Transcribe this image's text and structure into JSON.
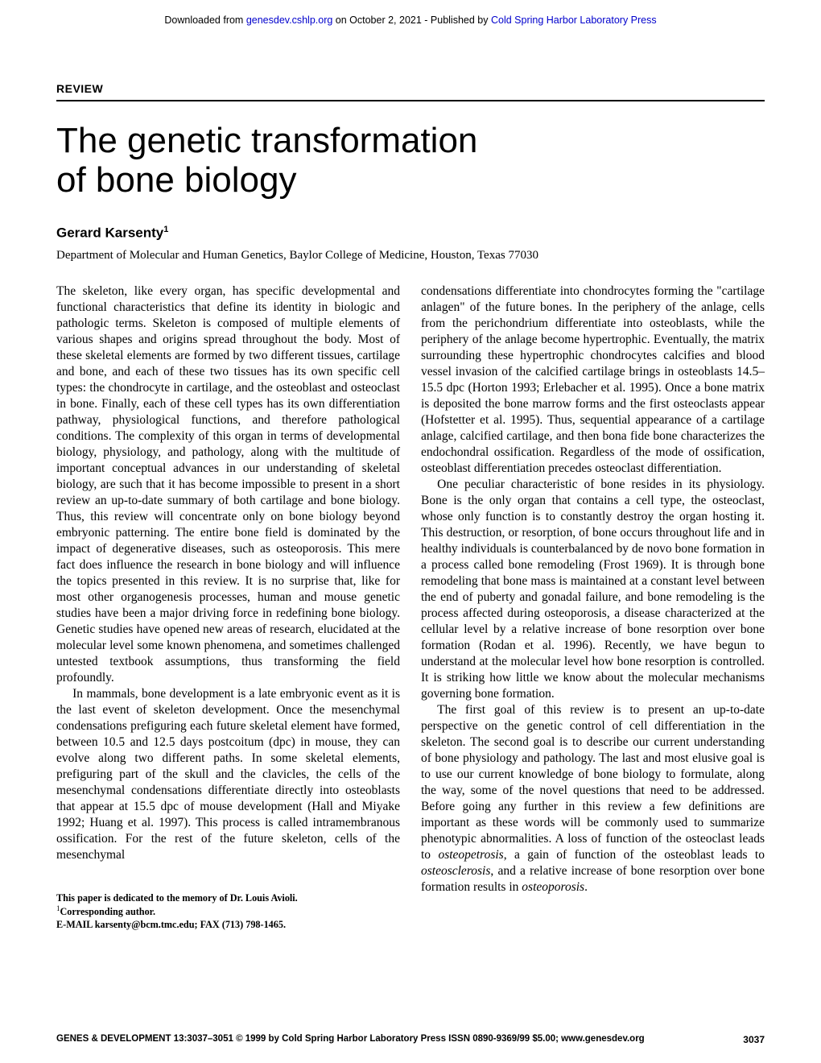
{
  "header": {
    "prefix": "Downloaded from ",
    "link1_text": "genesdev.cshlp.org",
    "mid": " on October 2, 2021 - Published by ",
    "link2_text": "Cold Spring Harbor Laboratory Press"
  },
  "section_label": "REVIEW",
  "title_line1": "The genetic transformation",
  "title_line2": "of bone biology",
  "author_name": "Gerard Karsenty",
  "author_sup": "1",
  "affiliation": "Department of Molecular and Human Genetics, Baylor College of Medicine, Houston, Texas 77030",
  "body": {
    "p1": "The skeleton, like every organ, has specific developmental and functional characteristics that define its identity in biologic and pathologic terms. Skeleton is composed of multiple elements of various shapes and origins spread throughout the body. Most of these skeletal elements are formed by two different tissues, cartilage and bone, and each of these two tissues has its own specific cell types: the chondrocyte in cartilage, and the osteoblast and osteoclast in bone. Finally, each of these cell types has its own differentiation pathway, physiological functions, and therefore pathological conditions. The complexity of this organ in terms of developmental biology, physiology, and pathology, along with the multitude of important conceptual advances in our understanding of skeletal biology, are such that it has become impossible to present in a short review an up-to-date summary of both cartilage and bone biology. Thus, this review will concentrate only on bone biology beyond embryonic patterning. The entire bone field is dominated by the impact of degenerative diseases, such as osteoporosis. This mere fact does influence the research in bone biology and will influence the topics presented in this review. It is no surprise that, like for most other organogenesis processes, human and mouse genetic studies have been a major driving force in redefining bone biology. Genetic studies have opened new areas of research, elucidated at the molecular level some known phenomena, and sometimes challenged untested textbook assumptions, thus transforming the field profoundly.",
    "p2": "In mammals, bone development is a late embryonic event as it is the last event of skeleton development. Once the mesenchymal condensations prefiguring each future skeletal element have formed, between 10.5 and 12.5 days postcoitum (dpc) in mouse, they can evolve along two different paths. In some skeletal elements, prefiguring part of the skull and the clavicles, the cells of the mesenchymal condensations differentiate directly into osteoblasts that appear at 15.5 dpc of mouse development (Hall and Miyake 1992; Huang et al. 1997). This process is called intramembranous ossification. For the rest of the future skeleton, cells of the mesenchymal",
    "p3a": "condensations differentiate into chondrocytes forming the \"cartilage anlagen\" of the future bones. In the periphery of the anlage, cells from the perichondrium differentiate into osteoblasts, while the periphery of the anlage become hypertrophic. Eventually, the matrix surrounding these hypertrophic chondrocytes calcifies and blood vessel invasion of the calcified cartilage brings in osteoblasts ",
    "p3b": "14.5–15.5 dpc (Horton 1993; Erlebacher et al. 1995). Once a bone matrix is deposited the bone marrow forms and the first osteoclasts appear (Hofstetter et al. 1995). Thus, sequential appearance of a cartilage anlage, calcified cartilage, and then bona fide bone characterizes the endochondral ossification. Regardless of the mode of ossification, osteoblast differentiation precedes osteoclast differentiation.",
    "p4": "One peculiar characteristic of bone resides in its physiology. Bone is the only organ that contains a cell type, the osteoclast, whose only function is to constantly destroy the organ hosting it. This destruction, or resorption, of bone occurs throughout life and in healthy individuals is counterbalanced by de novo bone formation in a process called bone remodeling (Frost 1969). It is through bone remodeling that bone mass is maintained at a constant level between the end of puberty and gonadal failure, and bone remodeling is the process affected during osteoporosis, a disease characterized at the cellular level by a relative increase of bone resorption over bone formation (Rodan et al. 1996). Recently, we have begun to understand at the molecular level how bone resorption is controlled. It is striking how little we know about the molecular mechanisms governing bone formation.",
    "p5a": "The first goal of this review is to present an up-to-date perspective on the genetic control of cell differentiation in the skeleton. The second goal is to describe our current understanding of bone physiology and pathology. The last and most elusive goal is to use our current knowledge of bone biology to formulate, along the way, some of the novel questions that need to be addressed. Before going any further in this review a few definitions are important as these words will be commonly used to summarize phenotypic abnormalities. A loss of function of the osteoclast leads to ",
    "p5_i1": "osteopetrosis",
    "p5b": ", a gain of function of the osteoblast leads to ",
    "p5_i2": "osteosclerosis",
    "p5c": ", and a relative increase of bone resorption over bone formation results in ",
    "p5_i3": "osteoporosis",
    "p5d": "."
  },
  "footnotes": {
    "dedication": "This paper is dedicated to the memory of Dr. Louis Avioli.",
    "corresponding_sup": "1",
    "corresponding_text": "Corresponding author.",
    "email_label": "E-MAIL ",
    "email": "karsenty@bcm.tmc.edu",
    "fax": "; FAX (713) 798-1465."
  },
  "footer": {
    "left": "GENES & DEVELOPMENT 13:3037–3051 © 1999 by Cold Spring Harbor Laboratory Press ISSN 0890-9369/99 $5.00; www.genesdev.org",
    "page_number": "3037"
  }
}
